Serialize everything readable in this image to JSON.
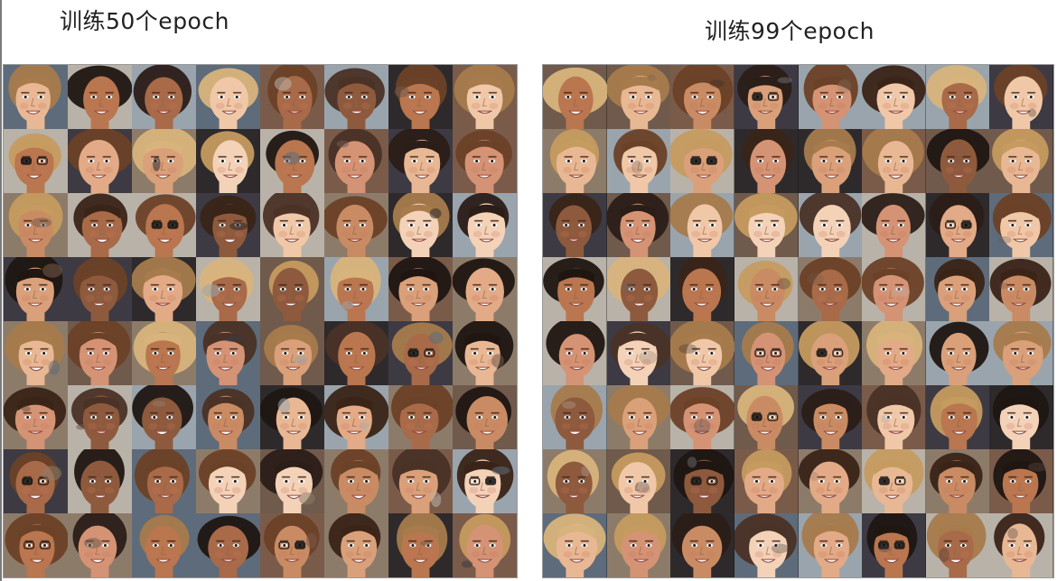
{
  "panels": [
    {
      "title": "训练50个epoch",
      "rows": 8,
      "cols": 8,
      "tone": "warm"
    },
    {
      "title": "训练99个epoch",
      "rows": 8,
      "cols": 8,
      "tone": "rich"
    }
  ],
  "colors": {
    "skin_tones": [
      "#e8b894",
      "#d9a07a",
      "#f0c8a8",
      "#c98b63",
      "#b9764f",
      "#e2aa86",
      "#a86a48",
      "#f3d2b8",
      "#d49374",
      "#8e5a3d"
    ],
    "hair_tones": [
      "#3a2418",
      "#6b4127",
      "#a77b4c",
      "#1f1612",
      "#c59b5f",
      "#4a3226",
      "#d8b47c",
      "#2b1d18"
    ],
    "background_tones": [
      "#6f5a4c",
      "#3d3a44",
      "#8d7b6a",
      "#5e6b7a",
      "#b9b2a8",
      "#2e2a2c",
      "#7a5b4a",
      "#9aa4ad"
    ]
  }
}
